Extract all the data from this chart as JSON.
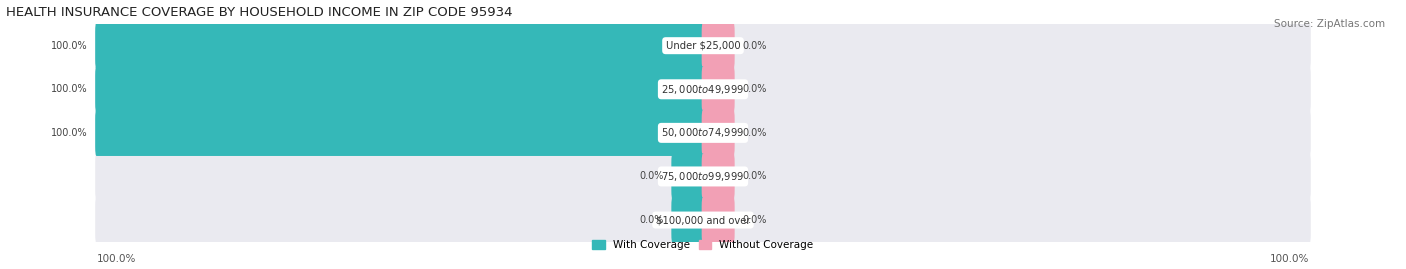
{
  "title": "HEALTH INSURANCE COVERAGE BY HOUSEHOLD INCOME IN ZIP CODE 95934",
  "source": "Source: ZipAtlas.com",
  "categories": [
    "Under $25,000",
    "$25,000 to $49,999",
    "$50,000 to $74,999",
    "$75,000 to $99,999",
    "$100,000 and over"
  ],
  "with_coverage": [
    100.0,
    100.0,
    100.0,
    0.0,
    0.0
  ],
  "without_coverage": [
    0.0,
    0.0,
    0.0,
    0.0,
    0.0
  ],
  "with_stub": [
    0.0,
    0.0,
    0.0,
    5.0,
    5.0
  ],
  "without_stub": [
    5.0,
    5.0,
    5.0,
    5.0,
    5.0
  ],
  "color_with": "#35b8b8",
  "color_without": "#f2a0b5",
  "bar_bg_color": "#eaeaf0",
  "bg_color": "#ffffff",
  "title_fontsize": 9.5,
  "source_fontsize": 7.5,
  "bar_height": 0.62,
  "xlim_left": -115,
  "xlim_right": 115,
  "axis_label_left": "100.0%",
  "axis_label_right": "100.0%"
}
